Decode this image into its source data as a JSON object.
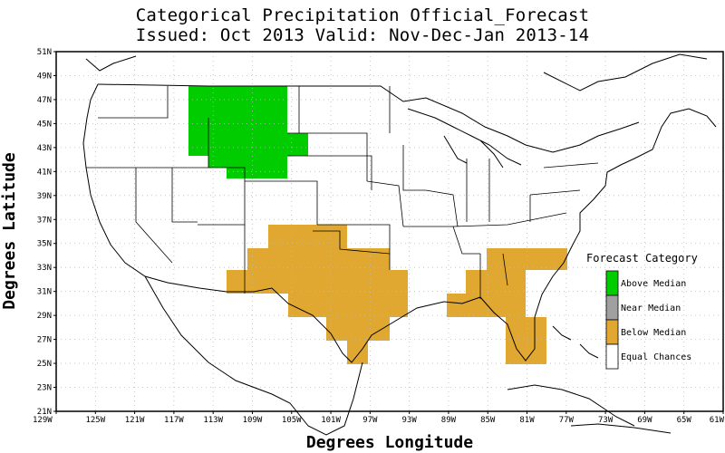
{
  "title_line1": "Categorical Precipitation Official_Forecast",
  "title_line2": "Issued: Oct 2013 Valid: Nov-Dec-Jan 2013-14",
  "axes": {
    "xlabel": "Degrees Longitude",
    "ylabel": "Degrees Latitude",
    "lat_ticks": [
      "51N",
      "49N",
      "47N",
      "45N",
      "43N",
      "41N",
      "39N",
      "37N",
      "35N",
      "33N",
      "31N",
      "29N",
      "27N",
      "25N",
      "23N",
      "21N"
    ],
    "lon_ticks": [
      "129W",
      "125W",
      "121W",
      "117W",
      "113W",
      "109W",
      "105W",
      "101W",
      "97W",
      "93W",
      "89W",
      "85W",
      "81W",
      "77W",
      "73W",
      "69W",
      "65W",
      "61W"
    ]
  },
  "legend": {
    "title": "Forecast Category",
    "items": [
      {
        "label": "Above Median",
        "color": "#00cc00"
      },
      {
        "label": "Near Median",
        "color": "#a0a0a0"
      },
      {
        "label": "Below Median",
        "color": "#e0a830"
      },
      {
        "label": "Equal Chances",
        "color": "#ffffff"
      }
    ]
  },
  "colors": {
    "above_median": "#00cc00",
    "below_median": "#e0a830",
    "grid": "#bbbbbb"
  }
}
